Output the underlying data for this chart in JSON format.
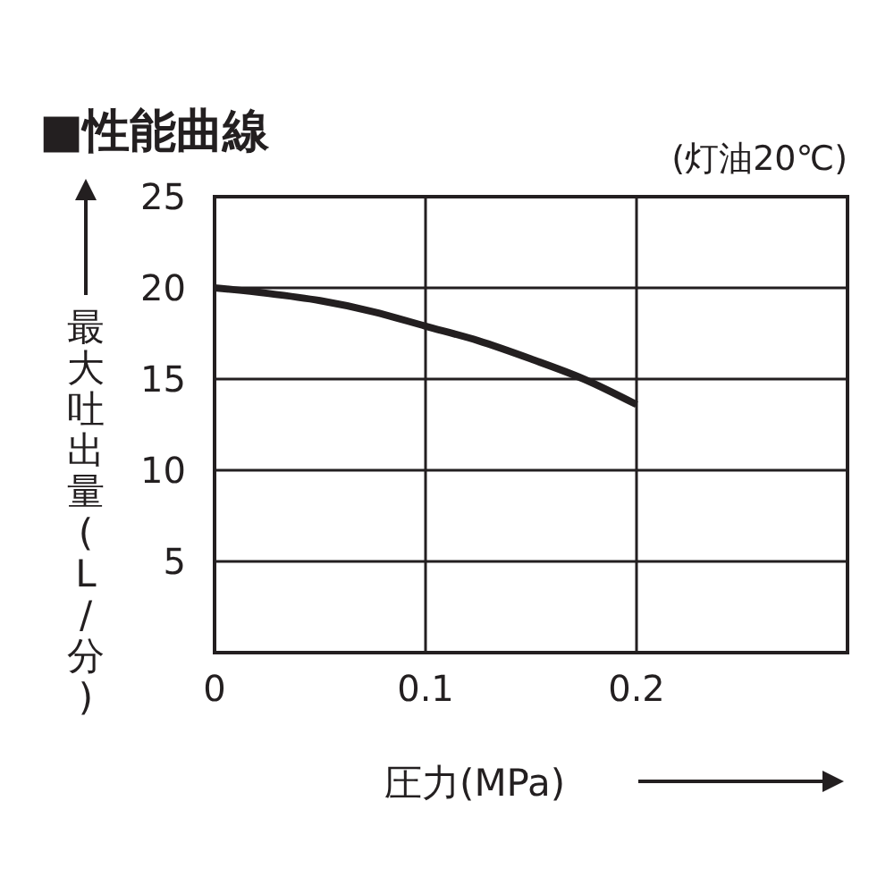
{
  "chart_data": {
    "type": "line",
    "title": "■性能曲線",
    "subtitle": "(灯油20℃)",
    "xlabel": "圧力(MPa)",
    "ylabel": "最大吐出量(L/分)",
    "x": [
      0,
      0.025,
      0.05,
      0.075,
      0.1,
      0.125,
      0.15,
      0.175,
      0.2
    ],
    "series": [
      {
        "color": "#231f20",
        "values": [
          20,
          19.7,
          19.3,
          18.7,
          17.9,
          17.1,
          16.1,
          15,
          13.6
        ]
      }
    ],
    "xlim": [
      0,
      0.3
    ],
    "xticks": [
      0,
      0.1,
      0.2
    ],
    "ylim": [
      0,
      25
    ],
    "yticks": [
      5,
      10,
      15,
      20,
      25
    ],
    "grid": true,
    "marker": "none",
    "line_style": "solid"
  }
}
